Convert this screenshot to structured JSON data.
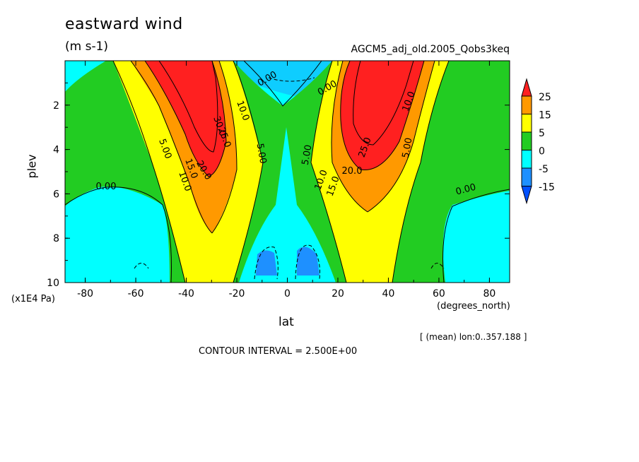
{
  "chart_data": {
    "type": "heatmap",
    "title": "eastward wind",
    "units": "(m s-1)",
    "dataset": "AGCM5_adj_old.2005_Qobs3keq",
    "xlabel": "lat",
    "xunits": "(degrees_north)",
    "ylabel": "plev",
    "yunits": "(x1E4 Pa)",
    "xlim": [
      -88,
      88
    ],
    "ylim": [
      10,
      0
    ],
    "xticks": [
      "-80",
      "-60",
      "-40",
      "-20",
      "0",
      "20",
      "40",
      "60",
      "80"
    ],
    "yticks": [
      "2",
      "4",
      "6",
      "8",
      "10"
    ],
    "legend": {
      "position": "right",
      "levels": [
        "25",
        "15",
        "5",
        "0",
        "-5",
        "-15"
      ],
      "colors": [
        "#ff2020",
        "#ff9900",
        "#ffff00",
        "#22cc22",
        "#00ffff",
        "#1e90ff",
        "#0050ff"
      ]
    },
    "contour_labels": [
      "0.00",
      "0.00",
      "0.00",
      "0.00",
      "5.00",
      "5.00",
      "5.00",
      "5.00",
      "10.0",
      "10.0",
      "10.0",
      "10.0",
      "15.0",
      "15.0",
      "20.0",
      "20.0",
      "25.0",
      "25.0",
      "30.0"
    ],
    "mean_info": "[ (mean) lon:0..357.188 ]",
    "contour_interval": "CONTOUR INTERVAL = 2.500E+00"
  }
}
